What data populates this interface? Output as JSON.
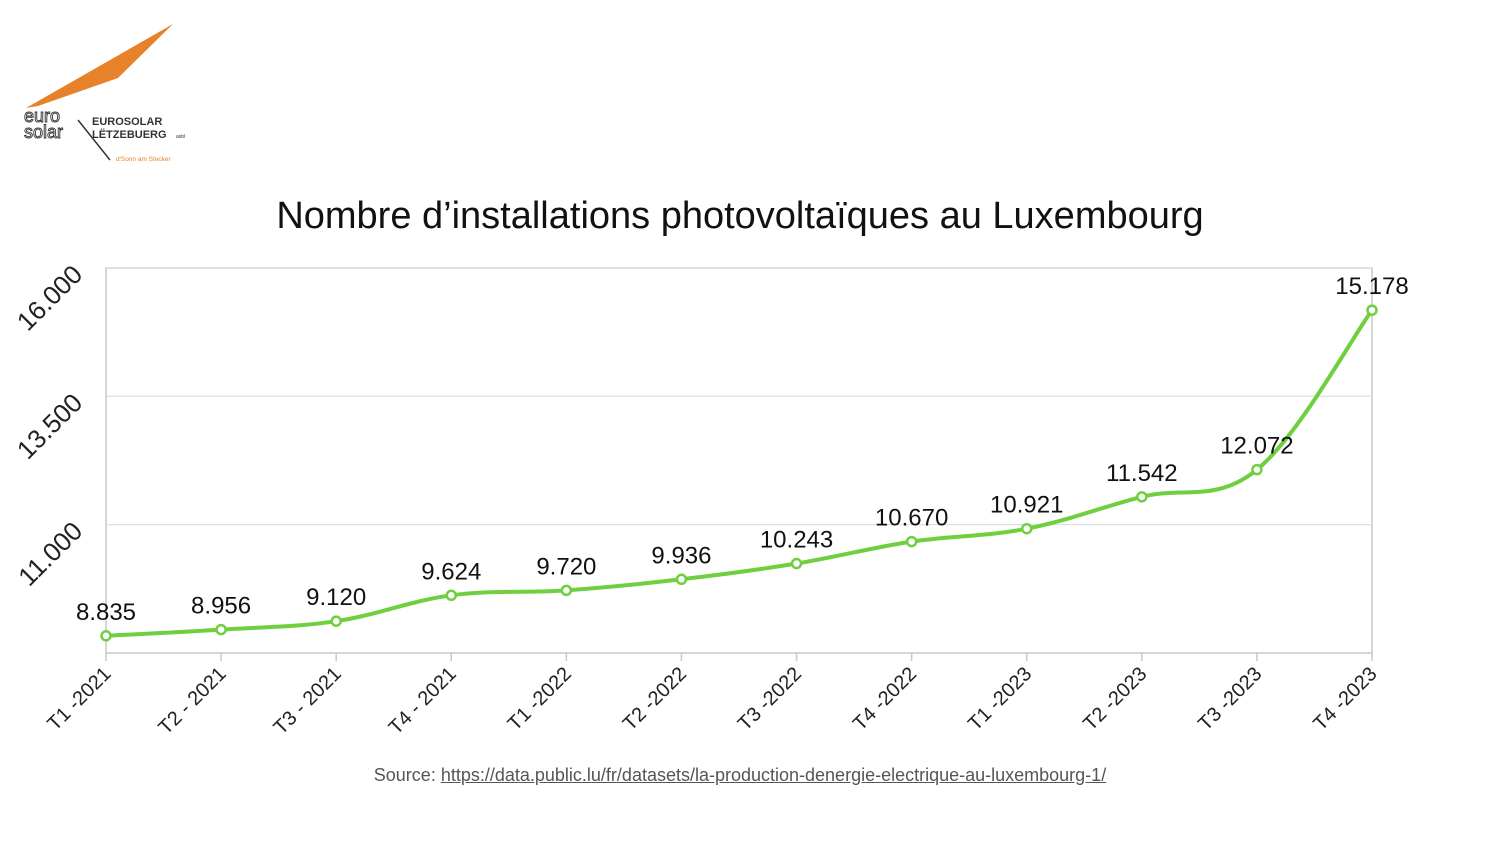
{
  "logo": {
    "mark_text_1": "euro",
    "mark_text_2": "solar",
    "line1": "EUROSOLAR",
    "line2": "LËTZEBUERG",
    "suffix": "asbl",
    "tagline": "d'Sonn am Stecker",
    "colors": {
      "orange": "#e8822a",
      "ink": "#333333"
    }
  },
  "source": {
    "prefix": "Source: ",
    "link_text": "https://data.public.lu/fr/datasets/la-production-denergie-electrique-au-luxembourg-1/"
  },
  "chart_data": {
    "type": "line",
    "title": "Nombre d’installations photovoltaïques au Luxembourg",
    "xlabel": "",
    "ylabel": "",
    "ylim": [
      8500,
      16000
    ],
    "y_ticks": [
      11000,
      13500,
      16000
    ],
    "y_tick_labels": [
      "11.000",
      "13.500",
      "16.000"
    ],
    "grid": true,
    "categories": [
      "T1 -2021",
      "T2 - 2021",
      "T3 - 2021",
      "T4 - 2021",
      "T1 -2022",
      "T2 -2022",
      "T3 -2022",
      "T4 -2022",
      "T1 -2023",
      "T2 -2023",
      "T3 -2023",
      "T4 -2023"
    ],
    "series": [
      {
        "values": [
          8835,
          8956,
          9120,
          9624,
          9720,
          9936,
          10243,
          10670,
          10921,
          11542,
          12072,
          15178
        ],
        "value_labels": [
          "8.835",
          "8.956",
          "9.120",
          "9.624",
          "9.720",
          "9.936",
          "10.243",
          "10.670",
          "10.921",
          "11.542",
          "12.072",
          "15.178"
        ],
        "color": "#6fcf3f"
      }
    ]
  }
}
